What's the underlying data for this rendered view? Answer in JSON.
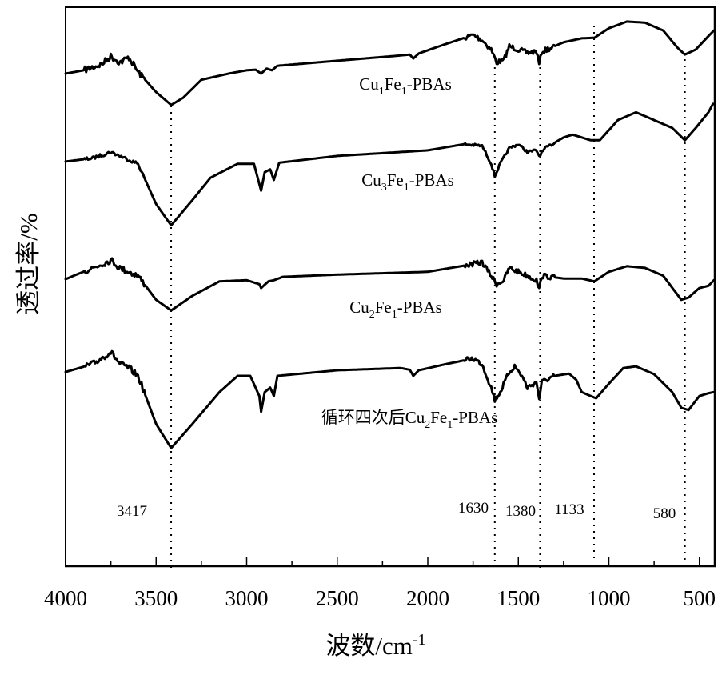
{
  "chart_data": {
    "type": "line",
    "title": "",
    "xlabel": "波数/cm",
    "xlabel_sup": "-1",
    "ylabel": "透过率/%",
    "xlim": [
      4000,
      420
    ],
    "ylim": [
      0,
      100
    ],
    "x_reversed": true,
    "grid": false,
    "legend": "inline labels next to each curve",
    "x_ticks": [
      4000,
      3500,
      3000,
      2500,
      2000,
      1500,
      1000,
      500
    ],
    "x_minor_ticks": [
      3750,
      3250,
      2750,
      2250,
      1750,
      1250,
      750
    ],
    "peak_markers": [
      {
        "label": "3417",
        "x": 3417
      },
      {
        "label": "1630",
        "x": 1630
      },
      {
        "label": "1380",
        "x": 1380
      },
      {
        "label": "1133",
        "x": 1133
      },
      {
        "label": "580",
        "x": 580
      }
    ],
    "series": [
      {
        "name_parts": [
          "Cu",
          "1",
          "Fe",
          "1",
          "-PBAs"
        ],
        "x": [
          4000,
          3900,
          3800,
          3750,
          3700,
          3650,
          3600,
          3500,
          3417,
          3350,
          3250,
          3100,
          3000,
          2950,
          2920,
          2890,
          2860,
          2830,
          2500,
          2200,
          2100,
          2080,
          2050,
          1900,
          1750,
          1700,
          1650,
          1620,
          1580,
          1550,
          1500,
          1450,
          1400,
          1385,
          1370,
          1250,
          1150,
          1080,
          1000,
          900,
          800,
          700,
          620,
          580,
          520,
          450,
          420
        ],
        "y": [
          88,
          88.6,
          89.7,
          91.1,
          90,
          90.9,
          88.3,
          84.7,
          82.4,
          83.7,
          86.9,
          88,
          88.6,
          88.7,
          88,
          88.9,
          88.6,
          89.4,
          90.3,
          91.1,
          91.4,
          90.7,
          91.6,
          93.3,
          94.9,
          94,
          92.3,
          90,
          90.4,
          92.9,
          92.3,
          91.7,
          92,
          89.7,
          91.9,
          93.6,
          94.3,
          94.4,
          96.1,
          97.3,
          97.1,
          95.7,
          92.6,
          91.4,
          92.3,
          94.7,
          95.7
        ]
      },
      {
        "name_parts": [
          "Cu",
          "3",
          "Fe",
          "1",
          "-PBAs"
        ],
        "x": [
          4000,
          3850,
          3750,
          3700,
          3600,
          3500,
          3417,
          3300,
          3200,
          3050,
          2960,
          2920,
          2900,
          2870,
          2850,
          2820,
          2500,
          2000,
          1800,
          1700,
          1650,
          1630,
          1600,
          1550,
          1500,
          1450,
          1400,
          1385,
          1350,
          1250,
          1200,
          1100,
          1050,
          950,
          850,
          750,
          650,
          580,
          520,
          450,
          425
        ],
        "y": [
          72.3,
          72.9,
          74,
          73.3,
          71.9,
          64.7,
          60.9,
          65.4,
          69.4,
          71.9,
          71.9,
          67.1,
          70.4,
          70.9,
          69,
          72.1,
          73.3,
          74.3,
          75.4,
          75.1,
          71.9,
          69.7,
          71.9,
          74.7,
          75.4,
          74,
          74.3,
          73.3,
          74.7,
          76.6,
          77.1,
          76.1,
          76.1,
          79.7,
          81.1,
          79.7,
          78.3,
          76.1,
          78.3,
          81.1,
          82.6
        ]
      },
      {
        "name_parts": [
          "Cu",
          "2",
          "Fe",
          "1",
          "-PBAs"
        ],
        "x": [
          4000,
          3850,
          3750,
          3700,
          3600,
          3500,
          3417,
          3300,
          3150,
          3000,
          2930,
          2920,
          2880,
          2850,
          2800,
          2500,
          2000,
          1800,
          1700,
          1650,
          1620,
          1580,
          1550,
          1500,
          1450,
          1400,
          1385,
          1370,
          1250,
          1150,
          1080,
          1000,
          900,
          800,
          700,
          600,
          560,
          500,
          450,
          420
        ],
        "y": [
          51.3,
          53.3,
          54.7,
          53.3,
          51.9,
          47.6,
          45.7,
          48.3,
          50.9,
          51.1,
          50.4,
          49.7,
          50.9,
          51.1,
          51.7,
          52.1,
          52.6,
          53.7,
          54.3,
          51.9,
          50.4,
          51.1,
          53.3,
          52.6,
          51.9,
          51.1,
          49.4,
          51.9,
          51.4,
          51.4,
          50.9,
          52.6,
          53.6,
          53.3,
          51.9,
          47.6,
          48,
          49.7,
          50.1,
          51.1
        ]
      },
      {
        "name_parts": [
          "循环四次后Cu",
          "2",
          "Fe",
          "1",
          "-PBAs"
        ],
        "x": [
          4000,
          3850,
          3750,
          3700,
          3650,
          3600,
          3500,
          3417,
          3300,
          3150,
          3050,
          2980,
          2930,
          2920,
          2900,
          2870,
          2850,
          2830,
          2500,
          2150,
          2100,
          2080,
          2050,
          1900,
          1750,
          1700,
          1650,
          1630,
          1600,
          1550,
          1520,
          1480,
          1450,
          1400,
          1385,
          1370,
          1300,
          1220,
          1180,
          1150,
          1100,
          1070,
          1000,
          920,
          850,
          750,
          650,
          600,
          560,
          500,
          450,
          420
        ],
        "y": [
          34.7,
          36.1,
          38.3,
          36.1,
          35.4,
          34,
          25.4,
          21.1,
          25.4,
          31.1,
          34,
          34,
          30.4,
          27.6,
          31.1,
          31.9,
          30.4,
          34,
          35,
          35.4,
          35.1,
          34,
          35,
          36.1,
          37.1,
          36.1,
          31.9,
          29.7,
          31.1,
          34.7,
          35.7,
          34,
          31.9,
          32.9,
          30,
          32.9,
          34,
          34.4,
          33.3,
          31.1,
          30.4,
          30,
          32.6,
          35.4,
          35.7,
          34.3,
          31.1,
          28.3,
          27.9,
          30.4,
          30.9,
          31.1
        ]
      }
    ]
  }
}
